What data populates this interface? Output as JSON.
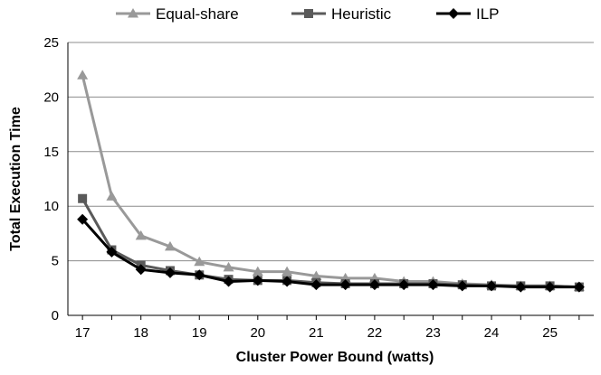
{
  "chart_data": {
    "type": "line",
    "x": [
      17,
      17.5,
      18,
      18.5,
      19,
      19.5,
      20,
      20.5,
      21,
      21.5,
      22,
      22.5,
      23,
      23.5,
      24,
      24.5,
      25,
      25.5
    ],
    "xticks": [
      "17",
      "18",
      "19",
      "20",
      "21",
      "22",
      "23",
      "24",
      "25"
    ],
    "yticks": [
      "0",
      "5",
      "10",
      "15",
      "20",
      "25"
    ],
    "xlim": [
      16.75,
      25.75
    ],
    "ylim": [
      0,
      25
    ],
    "xlabel": "Cluster Power Bound (watts)",
    "ylabel": "Total Execution Time",
    "grid": "horizontal",
    "legend_position": "top",
    "series": [
      {
        "name": "Equal-share",
        "marker": "triangle",
        "color": "#999999",
        "values": [
          22.0,
          10.9,
          7.3,
          6.3,
          4.9,
          4.4,
          4.0,
          4.0,
          3.6,
          3.4,
          3.4,
          3.1,
          3.1,
          2.9,
          2.8,
          2.7,
          2.7,
          2.6
        ]
      },
      {
        "name": "Heuristic",
        "marker": "square",
        "color": "#5a5a5a",
        "values": [
          10.7,
          6.0,
          4.6,
          4.1,
          3.7,
          3.3,
          3.2,
          3.2,
          3.0,
          2.9,
          2.9,
          2.9,
          2.9,
          2.8,
          2.7,
          2.7,
          2.7,
          2.6
        ]
      },
      {
        "name": "ILP",
        "marker": "diamond",
        "color": "#000000",
        "values": [
          8.8,
          5.8,
          4.2,
          3.9,
          3.7,
          3.1,
          3.2,
          3.1,
          2.8,
          2.8,
          2.8,
          2.8,
          2.8,
          2.7,
          2.7,
          2.6,
          2.6,
          2.6
        ]
      }
    ]
  }
}
